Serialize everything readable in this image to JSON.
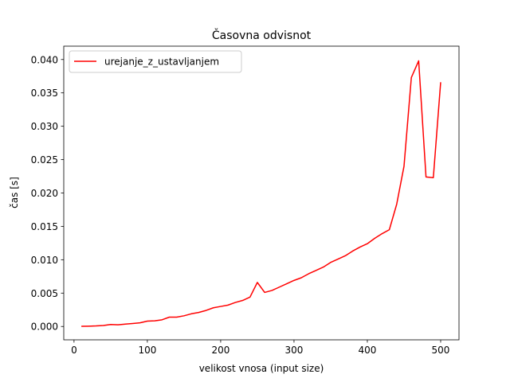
{
  "chart_data": {
    "type": "line",
    "title": "Časovna odvisnot",
    "xlabel": "velikost vnosa (input size)",
    "ylabel": "čas [s]",
    "xlim": [
      -14,
      525
    ],
    "ylim": [
      -0.002,
      0.042
    ],
    "grid": false,
    "legend_position": "top-left",
    "x_ticks": [
      0,
      100,
      200,
      300,
      400,
      500
    ],
    "x_tick_labels": [
      "0",
      "100",
      "200",
      "300",
      "400",
      "500"
    ],
    "y_ticks": [
      0.0,
      0.005,
      0.01,
      0.015,
      0.02,
      0.025,
      0.03,
      0.035,
      0.04
    ],
    "y_tick_labels": [
      "0.000",
      "0.005",
      "0.010",
      "0.015",
      "0.020",
      "0.025",
      "0.030",
      "0.035",
      "0.040"
    ],
    "series": [
      {
        "name": "urejanje_z_ustavljanjem",
        "color": "#ff0000",
        "x": [
          10,
          20,
          30,
          40,
          50,
          60,
          70,
          80,
          90,
          100,
          110,
          120,
          130,
          140,
          150,
          160,
          170,
          180,
          190,
          200,
          210,
          220,
          230,
          240,
          250,
          260,
          270,
          280,
          290,
          300,
          310,
          320,
          330,
          340,
          350,
          360,
          370,
          380,
          390,
          400,
          410,
          420,
          430,
          440,
          450,
          460,
          470,
          480,
          490,
          500
        ],
        "y": [
          2e-05,
          4e-05,
          8e-05,
          0.00015,
          0.0003,
          0.00025,
          0.00035,
          0.00045,
          0.00055,
          0.0008,
          0.00085,
          0.001,
          0.0014,
          0.0014,
          0.0016,
          0.0019,
          0.0021,
          0.0024,
          0.0028,
          0.003,
          0.0032,
          0.0036,
          0.0039,
          0.0044,
          0.0066,
          0.0051,
          0.0054,
          0.0059,
          0.0064,
          0.0069,
          0.0073,
          0.0079,
          0.0084,
          0.0089,
          0.0096,
          0.0101,
          0.0106,
          0.0113,
          0.0119,
          0.0124,
          0.0132,
          0.0139,
          0.0145,
          0.0183,
          0.024,
          0.0373,
          0.0398,
          0.0224,
          0.0223,
          0.0366
        ]
      }
    ]
  }
}
